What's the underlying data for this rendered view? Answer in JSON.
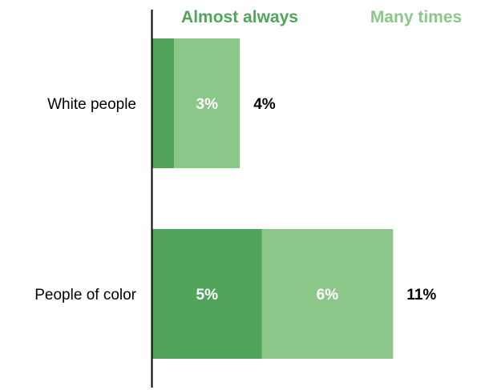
{
  "chart_data": {
    "type": "bar",
    "orientation": "horizontal",
    "stacked": true,
    "categories": [
      "White people",
      "People of color"
    ],
    "series": [
      {
        "name": "Almost always",
        "color": "#52a45a",
        "values": [
          1,
          5
        ],
        "labels": [
          "",
          "5%"
        ]
      },
      {
        "name": "Many times",
        "color": "#8bc789",
        "values": [
          3,
          6
        ],
        "labels": [
          "3%",
          "6%"
        ]
      }
    ],
    "totals": [
      "4%",
      "11%"
    ],
    "legend_position": "top",
    "grid": false
  }
}
